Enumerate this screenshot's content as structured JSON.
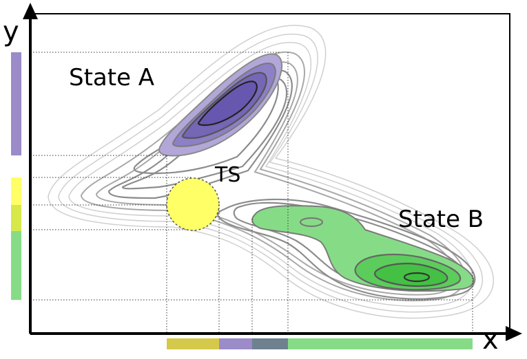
{
  "axes": {
    "x_label": "x",
    "y_label": "y"
  },
  "labels": {
    "state_a": "State A",
    "state_b": "State B",
    "ts": "TS"
  },
  "colors": {
    "state_a": "#9b8bc8",
    "state_a_dark": "#6a5ab0",
    "state_b": "#86dc86",
    "state_b_dark": "#4cc24c",
    "ts": "#ffff66",
    "ts_overlap": "#d6e84a",
    "bar_olive": "#d4c94a",
    "bar_purple": "#9b8bc8",
    "bar_slate": "#6e8190",
    "bar_green": "#86dc86"
  },
  "icons": {
    "ts_marker": "dashed-circle"
  }
}
